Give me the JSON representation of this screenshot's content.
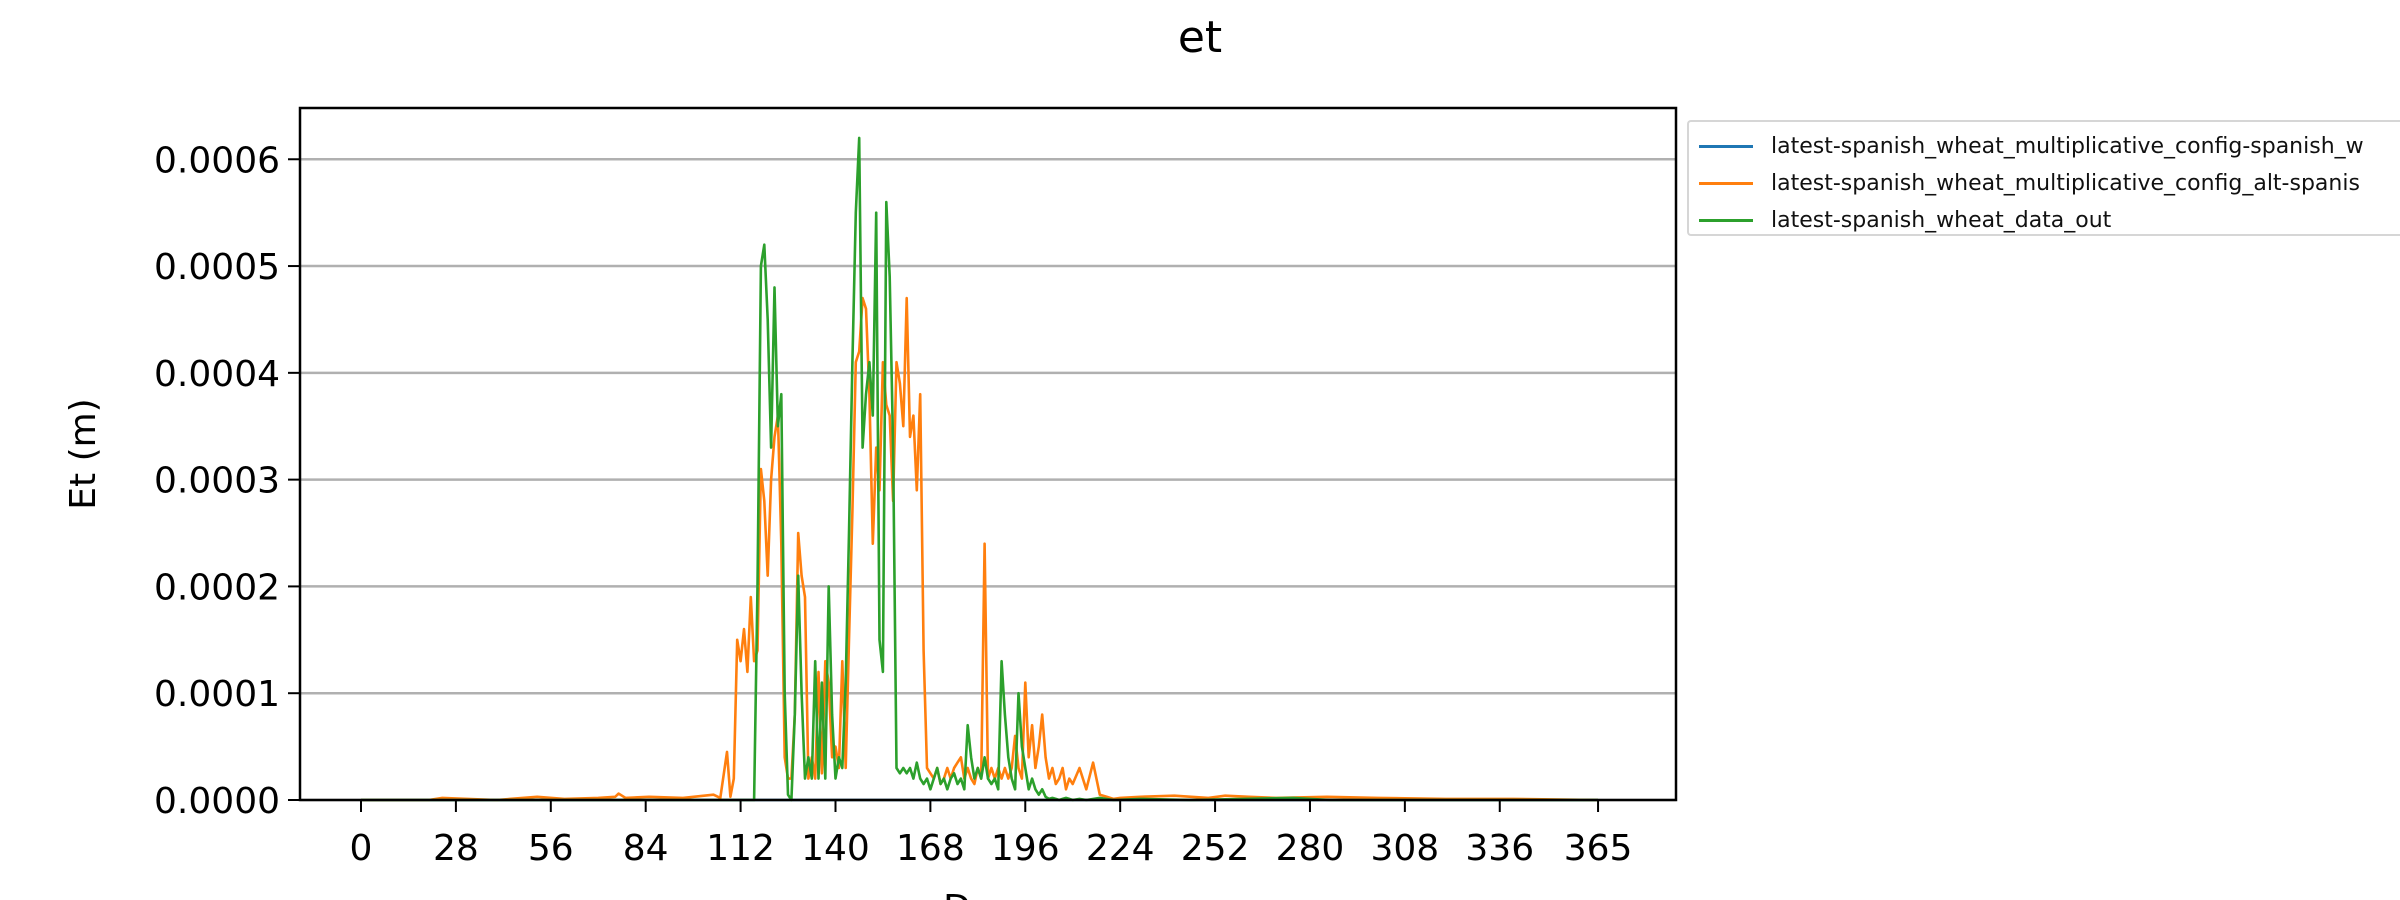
{
  "chart_data": {
    "type": "line",
    "title": "et",
    "xlabel": "Days",
    "ylabel": "Et (m)",
    "xlim": [
      -18,
      388
    ],
    "ylim": [
      0,
      0.000648
    ],
    "xticks": [
      0,
      28,
      56,
      84,
      112,
      140,
      168,
      196,
      224,
      252,
      280,
      308,
      336,
      365
    ],
    "yticks": [
      0.0,
      0.0001,
      0.0002,
      0.0003,
      0.0004,
      0.0005,
      0.0006
    ],
    "ytick_labels": [
      "0.0000",
      "0.0001",
      "0.0002",
      "0.0003",
      "0.0004",
      "0.0005",
      "0.0006"
    ],
    "grid": "horizontal",
    "legend_position": "outside-upper-right",
    "series": [
      {
        "name": "latest-spanish_wheat_multiplicative_config-spanish_w",
        "color": "#1f77b4",
        "x": [
          0,
          110,
          111,
          112,
          113,
          114,
          115,
          116,
          117,
          118,
          119,
          120,
          121,
          122,
          123,
          124,
          125,
          126,
          127,
          128,
          129,
          130,
          131,
          132,
          133,
          134,
          135,
          136,
          137,
          138,
          139,
          140,
          141,
          142,
          143,
          144,
          145,
          146,
          147,
          148,
          149,
          150,
          151,
          152,
          153,
          154,
          155,
          156,
          157,
          158,
          159,
          160,
          161,
          162,
          163,
          164,
          165,
          166,
          167,
          168,
          169,
          170,
          171,
          172,
          173,
          174,
          175,
          176,
          177,
          178,
          179,
          180,
          181,
          182,
          183,
          184,
          185,
          186,
          187,
          188,
          189,
          190,
          191,
          192,
          193,
          194,
          195,
          196,
          197,
          198,
          199,
          200,
          201,
          202,
          203,
          204,
          205,
          206,
          207,
          208,
          209,
          210,
          212,
          214,
          216,
          218,
          220,
          222,
          224,
          230,
          240,
          250,
          260,
          280,
          300,
          320,
          340,
          365
        ],
        "y": [
          0.0,
          0.0,
          0.0,
          0.0,
          0.0,
          0.0,
          0.0,
          0.0,
          0.0,
          0.0,
          0.0,
          0.0,
          0.0,
          0.0,
          0.0,
          0.0,
          0.0,
          0.0,
          0.0,
          0.0,
          0.0,
          0.0,
          0.0,
          0.0,
          0.0,
          0.0,
          0.0,
          0.0,
          0.0,
          0.0,
          0.0,
          0.0,
          0.0,
          0.0,
          0.0,
          0.0,
          0.0,
          0.0,
          0.0,
          0.0,
          0.0,
          0.0,
          0.0,
          0.0,
          0.0,
          0.0,
          0.0,
          0.0,
          0.0,
          0.0,
          0.0,
          0.0,
          0.0,
          0.0,
          0.0,
          0.0,
          0.0,
          0.0,
          0.0,
          0.0,
          0.0,
          0.0,
          0.0,
          0.0,
          0.0,
          0.0,
          0.0,
          0.0,
          0.0,
          0.0,
          0.0,
          0.0,
          0.0,
          0.0,
          0.0,
          0.0,
          0.0,
          0.0,
          0.0,
          0.0,
          0.0,
          0.0,
          0.0,
          0.0,
          0.0,
          0.0,
          0.0,
          0.0,
          0.0,
          0.0,
          0.0,
          0.0,
          0.0,
          0.0,
          0.0,
          0.0,
          0.0,
          0.0,
          0.0,
          0.0,
          0.0,
          0.0,
          0.0,
          0.0,
          0.0,
          0.0,
          0.0,
          0.0,
          0.0,
          0.0,
          0.0,
          0.0,
          0.0,
          0.0,
          0.0,
          0.0,
          0.0,
          0.0
        ]
      },
      {
        "name": "latest-spanish_wheat_multiplicative_config_alt-spanis",
        "color": "#ff7f0e",
        "x": [
          0,
          20,
          24,
          40,
          52,
          60,
          70,
          75,
          76,
          77,
          78,
          85,
          95,
          104,
          106,
          108,
          109,
          110,
          111,
          112,
          113,
          114,
          115,
          116,
          117,
          118,
          119,
          120,
          121,
          122,
          123,
          124,
          125,
          126,
          127,
          128,
          129,
          130,
          131,
          132,
          133,
          134,
          135,
          136,
          137,
          138,
          139,
          140,
          141,
          142,
          143,
          144,
          145,
          146,
          147,
          148,
          149,
          150,
          151,
          152,
          153,
          154,
          155,
          156,
          157,
          158,
          159,
          160,
          161,
          162,
          163,
          164,
          165,
          166,
          167,
          168,
          169,
          170,
          171,
          172,
          173,
          174,
          175,
          176,
          177,
          178,
          179,
          180,
          181,
          182,
          183,
          184,
          185,
          186,
          187,
          188,
          189,
          190,
          191,
          192,
          193,
          194,
          195,
          196,
          197,
          198,
          199,
          200,
          201,
          202,
          203,
          204,
          205,
          206,
          207,
          208,
          209,
          210,
          212,
          214,
          216,
          218,
          220,
          222,
          224,
          230,
          240,
          250,
          255,
          262,
          270,
          285,
          300,
          320,
          340,
          365
        ],
        "y": [
          0.0,
          0.0,
          2e-06,
          0.0,
          3e-06,
          1e-06,
          2e-06,
          3e-06,
          6e-06,
          4e-06,
          2e-06,
          3e-06,
          2e-06,
          5e-06,
          2e-06,
          4.5e-05,
          3e-06,
          2e-05,
          0.00015,
          0.00013,
          0.00016,
          0.00012,
          0.00019,
          0.00013,
          0.00014,
          0.00031,
          0.00028,
          0.00021,
          0.0003,
          0.00034,
          0.00036,
          0.00024,
          4e-05,
          2e-05,
          2e-05,
          8e-05,
          0.00025,
          0.00021,
          0.00019,
          2e-05,
          4e-05,
          2e-05,
          0.00012,
          2.5e-05,
          0.00013,
          0.00011,
          4e-05,
          5e-05,
          3e-05,
          0.00013,
          3e-05,
          0.00015,
          0.00027,
          0.00041,
          0.00042,
          0.00047,
          0.00046,
          0.00038,
          0.00024,
          0.00033,
          0.00029,
          0.00041,
          0.00037,
          0.00036,
          0.00028,
          0.00041,
          0.00039,
          0.00035,
          0.00047,
          0.00034,
          0.00036,
          0.00029,
          0.00038,
          0.00014,
          3e-05,
          2.5e-05,
          2e-05,
          3e-05,
          1.5e-05,
          2e-05,
          3e-05,
          2e-05,
          3e-05,
          3.5e-05,
          4e-05,
          2e-05,
          3e-05,
          2e-05,
          1.5e-05,
          3e-05,
          2e-05,
          0.00024,
          2e-05,
          3e-05,
          2e-05,
          3e-05,
          2e-05,
          3e-05,
          2e-05,
          3e-05,
          6e-05,
          3e-05,
          2e-05,
          0.00011,
          4e-05,
          7e-05,
          3e-05,
          5e-05,
          8e-05,
          4e-05,
          2e-05,
          3e-05,
          1.5e-05,
          2e-05,
          3e-05,
          1e-05,
          2e-05,
          1.5e-05,
          3e-05,
          1e-05,
          3.5e-05,
          5e-06,
          3e-06,
          1e-06,
          2e-06,
          3e-06,
          4e-06,
          2e-06,
          4e-06,
          3e-06,
          2e-06,
          3e-06,
          2e-06,
          1e-06,
          1e-06,
          0.0
        ]
      },
      {
        "name": "latest-spanish_wheat_data_out",
        "color": "#2ca02c",
        "x": [
          0,
          105,
          116,
          117,
          118,
          119,
          120,
          121,
          122,
          123,
          124,
          125,
          126,
          127,
          128,
          129,
          130,
          131,
          132,
          133,
          134,
          135,
          136,
          137,
          138,
          139,
          140,
          141,
          142,
          143,
          144,
          145,
          146,
          147,
          148,
          149,
          150,
          151,
          152,
          153,
          154,
          155,
          156,
          157,
          158,
          159,
          160,
          161,
          162,
          163,
          164,
          165,
          166,
          167,
          168,
          169,
          170,
          171,
          172,
          173,
          174,
          175,
          176,
          177,
          178,
          179,
          180,
          181,
          182,
          183,
          184,
          185,
          186,
          187,
          188,
          189,
          190,
          191,
          192,
          193,
          194,
          195,
          196,
          197,
          198,
          199,
          200,
          201,
          202,
          203,
          204,
          205,
          206,
          207,
          208,
          209,
          210,
          212,
          214,
          218,
          222,
          230,
          245,
          260,
          275,
          286,
          300,
          320,
          340,
          365
        ],
        "y": [
          0.0,
          0.0,
          0.0,
          0.0002,
          0.0005,
          0.00052,
          0.00045,
          0.00033,
          0.00048,
          0.00035,
          0.00038,
          0.0001,
          5e-06,
          0.0,
          8e-05,
          0.00021,
          0.0001,
          2e-05,
          4e-05,
          2e-05,
          0.00013,
          2e-05,
          0.00011,
          2e-05,
          0.0002,
          8e-05,
          2e-05,
          4e-05,
          3e-05,
          0.00011,
          0.00025,
          0.00041,
          0.00055,
          0.00062,
          0.00033,
          0.00038,
          0.00041,
          0.00036,
          0.00055,
          0.00015,
          0.00012,
          0.00056,
          0.00049,
          0.00033,
          3e-05,
          2.5e-05,
          3e-05,
          2.5e-05,
          3e-05,
          2e-05,
          3.5e-05,
          2e-05,
          1.5e-05,
          2e-05,
          1e-05,
          2e-05,
          3e-05,
          1.5e-05,
          2e-05,
          1e-05,
          2e-05,
          2.5e-05,
          1.5e-05,
          2e-05,
          1e-05,
          7e-05,
          4e-05,
          2e-05,
          3e-05,
          2e-05,
          4e-05,
          2e-05,
          1.5e-05,
          2e-05,
          1e-05,
          0.00013,
          8e-05,
          4e-05,
          2e-05,
          1e-05,
          0.0001,
          5e-05,
          3e-05,
          1e-05,
          2e-05,
          1e-05,
          5e-06,
          1e-05,
          3e-06,
          1e-06,
          2e-06,
          1e-06,
          0.0,
          1e-06,
          2e-06,
          1e-06,
          0.0,
          1e-06,
          0.0,
          2e-06,
          0.0,
          1e-06,
          0.0,
          1e-06,
          2e-06,
          0.0,
          0.0,
          0.0,
          0.0,
          0.0
        ]
      }
    ]
  }
}
